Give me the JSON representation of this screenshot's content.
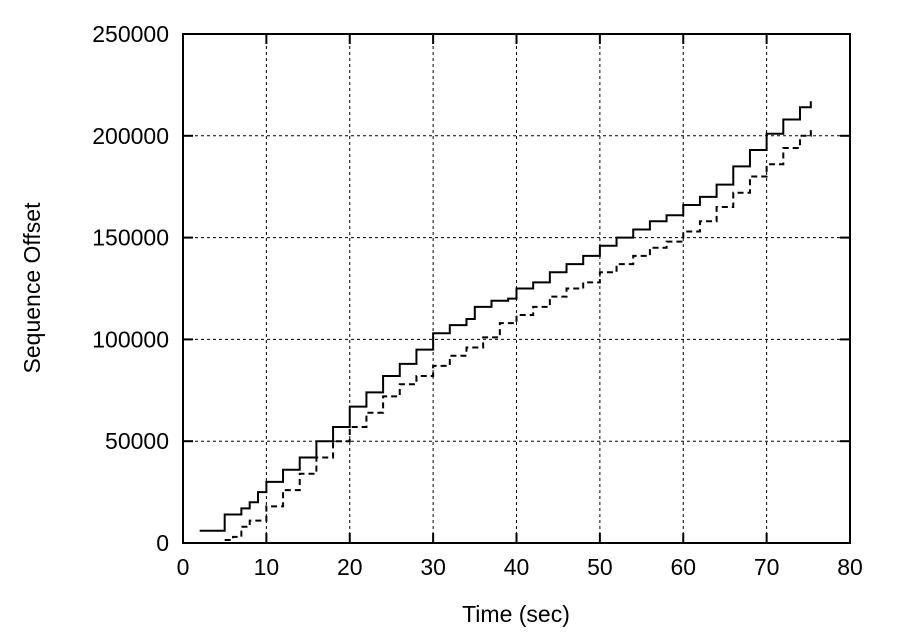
{
  "chart_data": {
    "type": "line",
    "title": "",
    "xlabel": "Time (sec)",
    "ylabel": "Sequence Offset",
    "xlim": [
      0,
      80
    ],
    "ylim": [
      0,
      250000
    ],
    "xticks": [
      0,
      10,
      20,
      30,
      40,
      50,
      60,
      70,
      80
    ],
    "yticks": [
      0,
      50000,
      100000,
      150000,
      200000,
      250000
    ],
    "grid": true,
    "step": true,
    "series": [
      {
        "style": "solid",
        "color": "#000000",
        "x": [
          2,
          4.9,
          5,
          6.5,
          7,
          8,
          9,
          10,
          12,
          14,
          16,
          18,
          20,
          22,
          24,
          26,
          28,
          30,
          32,
          34,
          35,
          37,
          39,
          40,
          42,
          44,
          46,
          48,
          50,
          52,
          54,
          56,
          58,
          60,
          62,
          64,
          66,
          68,
          70,
          72,
          74,
          75.3
        ],
        "y": [
          6000,
          6000,
          14000,
          14000,
          17000,
          20000,
          25000,
          30000,
          36000,
          42000,
          50000,
          57000,
          67000,
          74000,
          82000,
          88000,
          95000,
          103000,
          107000,
          110000,
          116000,
          119000,
          120000,
          125000,
          128000,
          133000,
          137000,
          141000,
          146000,
          150000,
          154000,
          158000,
          161000,
          166000,
          170000,
          176000,
          185000,
          193000,
          201000,
          208000,
          214000,
          217000
        ]
      },
      {
        "style": "dashed",
        "color": "#000000",
        "x": [
          5,
          6,
          7,
          8,
          10,
          12,
          14,
          16,
          18,
          20,
          22,
          24,
          26,
          28,
          30,
          32,
          34,
          36,
          38,
          40,
          42,
          44,
          46,
          48,
          50,
          52,
          54,
          56,
          58,
          60,
          62,
          64,
          66,
          68,
          70,
          72,
          74,
          75.3
        ],
        "y": [
          1500,
          3000,
          8000,
          11000,
          18000,
          26000,
          34000,
          42000,
          50000,
          57000,
          64000,
          72000,
          78000,
          82000,
          87000,
          92000,
          96000,
          101000,
          108000,
          112000,
          116000,
          121000,
          125000,
          128000,
          133000,
          137000,
          141000,
          145000,
          148000,
          153000,
          158000,
          165000,
          172000,
          180000,
          186000,
          194000,
          200000,
          204000
        ]
      }
    ]
  }
}
